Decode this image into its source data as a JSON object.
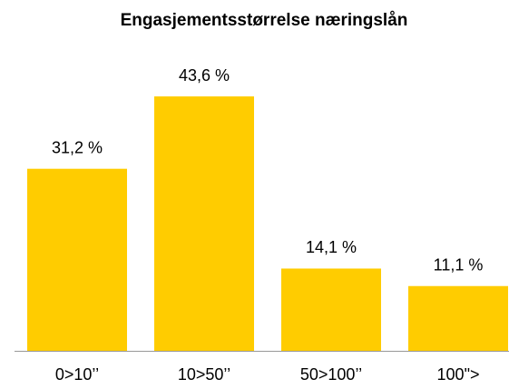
{
  "chart_data": {
    "type": "bar",
    "title": "Engasjementsstørrelse næringslån",
    "categories": [
      "0>10’’",
      "10>50’’",
      "50>100’’",
      "100\">"
    ],
    "values": [
      31.2,
      43.6,
      14.1,
      11.1
    ],
    "value_labels": [
      "31,2 %",
      "43,6 %",
      "14,1 %",
      "11,1 %"
    ],
    "color": "#ffcc00"
  }
}
